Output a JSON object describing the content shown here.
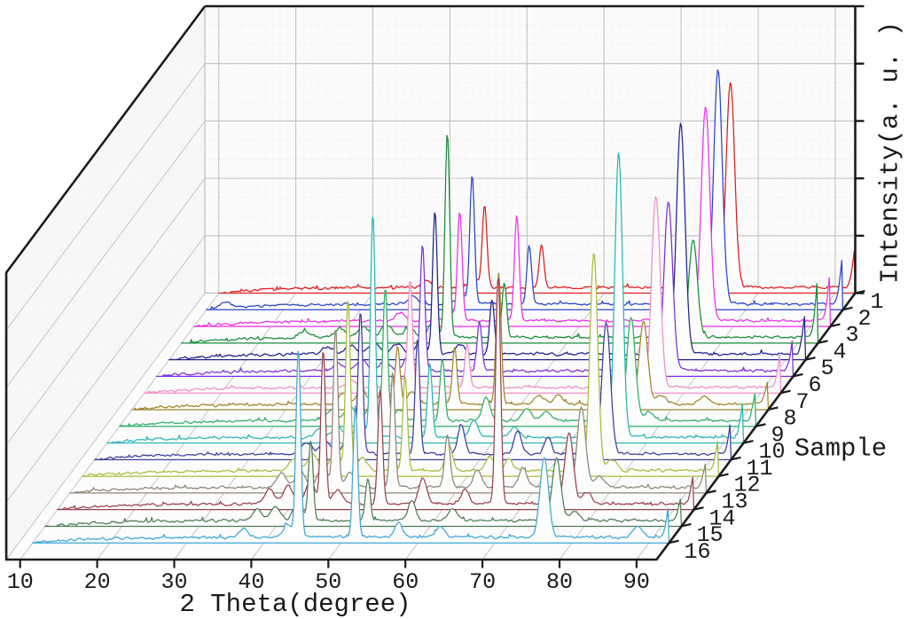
{
  "figure": {
    "description": "3D waterfall plot of X-ray diffraction patterns for 16 samples",
    "background": "#ffffff"
  },
  "chart_data": {
    "type": "line",
    "variant": "3d_waterfall_xrd",
    "title": "",
    "legend": "none",
    "grid": "on",
    "x_axis": {
      "label": "2 Theta(degree)",
      "ticks": [
        10,
        20,
        30,
        40,
        50,
        60,
        70,
        80,
        90
      ],
      "range": [
        8.2,
        92.6
      ],
      "units": "degree"
    },
    "y_axis": {
      "label": "Intensity(a. u. )",
      "tick_labels": [],
      "gridline_intervals": 5,
      "range": "arbitrary units, unlabeled"
    },
    "depth_axis": {
      "label": "Sample",
      "ticks": [
        "1",
        "2",
        "3",
        "4",
        "5",
        "6",
        "7",
        "8",
        "9",
        "10",
        "11",
        "12",
        "13",
        "14",
        "15",
        "16"
      ]
    },
    "peaks_format": [
      "two_theta_deg",
      "height_pct_of_axis",
      "width_deg"
    ],
    "noise_amplitude_pct": 0.7,
    "background_ramp_pct": 2.0,
    "samples": [
      {
        "label": "1",
        "color": "#e31a1c",
        "peaks": [
          [
            44.5,
            29,
            0.3
          ],
          [
            51.9,
            15,
            0.3
          ],
          [
            76.4,
            72,
            0.55
          ],
          [
            92.9,
            19,
            0.5
          ],
          [
            36.8,
            2.5,
            0.6
          ],
          [
            43.1,
            3,
            0.6
          ]
        ]
      },
      {
        "label": "2",
        "color": "#2743cf",
        "peaks": [
          [
            44.5,
            45,
            0.3
          ],
          [
            51.9,
            20,
            0.3
          ],
          [
            76.4,
            82,
            0.55
          ],
          [
            92.9,
            23,
            0.5
          ],
          [
            12.5,
            2,
            0.8
          ],
          [
            36.8,
            2.5,
            0.6
          ],
          [
            43.1,
            3.5,
            0.6
          ]
        ]
      },
      {
        "label": "3",
        "color": "#ee2dea",
        "peaks": [
          [
            44.5,
            38,
            0.3
          ],
          [
            51.9,
            37,
            0.3
          ],
          [
            76.4,
            75,
            0.55
          ],
          [
            92.9,
            22,
            0.5
          ],
          [
            36.8,
            3,
            0.6
          ],
          [
            43.1,
            3.5,
            0.6
          ]
        ]
      },
      {
        "label": "4",
        "color": "#168c37",
        "peaks": [
          [
            44.5,
            72,
            0.3
          ],
          [
            51.9,
            19,
            0.3
          ],
          [
            76.4,
            34,
            0.55
          ],
          [
            92.9,
            27,
            0.5
          ],
          [
            26.0,
            2.5,
            0.7
          ],
          [
            30.6,
            3,
            0.7
          ],
          [
            33.6,
            3.5,
            0.7
          ],
          [
            36.6,
            4.5,
            0.7
          ],
          [
            39.6,
            3.5,
            0.7
          ],
          [
            42.6,
            5,
            0.6
          ]
        ]
      },
      {
        "label": "5",
        "color": "#20208f",
        "peaks": [
          [
            44.5,
            50,
            0.3
          ],
          [
            51.9,
            19,
            0.3
          ],
          [
            76.4,
            81,
            0.55
          ],
          [
            92.9,
            19,
            0.5
          ],
          [
            30.6,
            2.5,
            0.7
          ],
          [
            33.6,
            3,
            0.7
          ],
          [
            36.6,
            4,
            0.7
          ],
          [
            39.6,
            3.5,
            0.7
          ],
          [
            42.6,
            5,
            0.6
          ],
          [
            47.8,
            3,
            0.6
          ]
        ]
      },
      {
        "label": "6",
        "color": "#7b2fe0",
        "peaks": [
          [
            44.5,
            44,
            0.3
          ],
          [
            51.9,
            17,
            0.3
          ],
          [
            76.4,
            59,
            0.55
          ],
          [
            92.9,
            15,
            0.5
          ],
          [
            33.6,
            2.5,
            0.7
          ],
          [
            36.6,
            3.5,
            0.7
          ],
          [
            39.6,
            3,
            0.7
          ],
          [
            42.6,
            4.5,
            0.6
          ]
        ]
      },
      {
        "label": "7",
        "color": "#f08cc8",
        "peaks": [
          [
            44.5,
            37,
            0.3
          ],
          [
            51.9,
            15,
            0.3
          ],
          [
            76.4,
            67,
            0.55
          ],
          [
            92.9,
            17,
            0.5
          ],
          [
            36.8,
            2.5,
            0.6
          ],
          [
            43.1,
            3,
            0.6
          ]
        ]
      },
      {
        "label": "8",
        "color": "#a08428",
        "peaks": [
          [
            44.5,
            20,
            0.3
          ],
          [
            51.9,
            20,
            0.3
          ],
          [
            57.6,
            46,
            0.32
          ],
          [
            76.4,
            29,
            0.55
          ],
          [
            92.9,
            12,
            0.5
          ],
          [
            37.5,
            4,
            0.6
          ],
          [
            39.9,
            5,
            0.6
          ],
          [
            42.8,
            6,
            0.6
          ],
          [
            46.4,
            4,
            0.6
          ],
          [
            62.9,
            3,
            0.6
          ],
          [
            65.4,
            3,
            0.6
          ],
          [
            78.7,
            3,
            0.6
          ],
          [
            84.3,
            2.5,
            0.6
          ]
        ]
      },
      {
        "label": "9",
        "color": "#2fae66",
        "peaks": [
          [
            44.5,
            46,
            0.3
          ],
          [
            51.9,
            22,
            0.3
          ],
          [
            76.4,
            36,
            0.55
          ],
          [
            92.9,
            14,
            0.5
          ],
          [
            37.5,
            4,
            0.6
          ],
          [
            39.9,
            5.5,
            0.6
          ],
          [
            42.8,
            7,
            0.6
          ],
          [
            46.4,
            4,
            0.6
          ],
          [
            57.6,
            8,
            0.5
          ],
          [
            62.9,
            4,
            0.6
          ],
          [
            65.4,
            3,
            0.6
          ],
          [
            78.7,
            3,
            0.6
          ]
        ]
      },
      {
        "label": "10",
        "color": "#26b7b2",
        "peaks": [
          [
            44.5,
            78,
            0.3
          ],
          [
            51.9,
            26,
            0.3
          ],
          [
            76.4,
            99,
            0.5
          ],
          [
            92.9,
            17,
            0.5
          ],
          [
            37.5,
            3,
            0.6
          ],
          [
            39.9,
            4,
            0.6
          ],
          [
            42.8,
            5,
            0.6
          ],
          [
            57.6,
            6,
            0.5
          ],
          [
            62.9,
            3.5,
            0.6
          ]
        ]
      },
      {
        "label": "11",
        "color": "#3d3da0",
        "peaks": [
          [
            44.5,
            50,
            0.3
          ],
          [
            51.9,
            40,
            0.3
          ],
          [
            76.4,
            46,
            0.55
          ],
          [
            92.9,
            15,
            0.5
          ],
          [
            37.5,
            4,
            0.6
          ],
          [
            39.9,
            5,
            0.6
          ],
          [
            42.8,
            6,
            0.6
          ],
          [
            57.6,
            10,
            0.45
          ],
          [
            64.9,
            8,
            0.45
          ],
          [
            68.8,
            6,
            0.45
          ]
        ]
      },
      {
        "label": "12",
        "color": "#a6bc3a",
        "peaks": [
          [
            44.5,
            60,
            0.3
          ],
          [
            51.9,
            33,
            0.3
          ],
          [
            76.4,
            76,
            0.5
          ],
          [
            92.9,
            15,
            0.5
          ],
          [
            37.5,
            4.5,
            0.6
          ],
          [
            39.9,
            6,
            0.6
          ],
          [
            42.8,
            7,
            0.6
          ],
          [
            46.4,
            4.5,
            0.6
          ],
          [
            57.6,
            9,
            0.45
          ],
          [
            62.9,
            5,
            0.5
          ],
          [
            65.4,
            4,
            0.5
          ],
          [
            78.7,
            3.5,
            0.6
          ]
        ]
      },
      {
        "label": "13",
        "color": "#8f8578",
        "peaks": [
          [
            44.5,
            56,
            0.3
          ],
          [
            51.9,
            40,
            0.3
          ],
          [
            59.0,
            18,
            0.35
          ],
          [
            76.4,
            28,
            0.55
          ],
          [
            92.9,
            12,
            0.5
          ],
          [
            37.5,
            5,
            0.6
          ],
          [
            39.9,
            6,
            0.6
          ],
          [
            42.8,
            7,
            0.6
          ],
          [
            46.4,
            5,
            0.6
          ],
          [
            62.9,
            6,
            0.5
          ],
          [
            68.8,
            7,
            0.5
          ],
          [
            78.7,
            4,
            0.6
          ]
        ]
      },
      {
        "label": "14",
        "color": "#99414f",
        "peaks": [
          [
            44.5,
            54,
            0.3
          ],
          [
            51.9,
            40,
            0.3
          ],
          [
            67.2,
            80,
            0.32
          ],
          [
            76.4,
            25,
            0.55
          ],
          [
            92.9,
            14,
            0.5
          ],
          [
            37.5,
            5,
            0.6
          ],
          [
            39.9,
            6.5,
            0.6
          ],
          [
            42.8,
            8,
            0.6
          ],
          [
            46.4,
            5,
            0.6
          ],
          [
            57.4,
            9,
            0.5
          ],
          [
            62.9,
            5,
            0.5
          ],
          [
            78.7,
            4,
            0.6
          ]
        ]
      },
      {
        "label": "15",
        "color": "#4d7d55",
        "peaks": [
          [
            44.5,
            28,
            0.3
          ],
          [
            51.9,
            15,
            0.3
          ],
          [
            76.4,
            22,
            0.55
          ],
          [
            92.9,
            11,
            0.5
          ],
          [
            37.5,
            4,
            0.6
          ],
          [
            39.9,
            5,
            0.6
          ],
          [
            42.8,
            6,
            0.6
          ],
          [
            57.6,
            7,
            0.5
          ],
          [
            62.9,
            4,
            0.6
          ],
          [
            78.7,
            3,
            0.6
          ]
        ]
      },
      {
        "label": "16",
        "color": "#3ea6d2",
        "peaks": [
          [
            44.5,
            66,
            0.3
          ],
          [
            51.9,
            46,
            0.3
          ],
          [
            76.4,
            28,
            0.55
          ],
          [
            92.9,
            15,
            0.5
          ],
          [
            37.4,
            3,
            0.6
          ],
          [
            43.1,
            4,
            0.6
          ],
          [
            57.5,
            5,
            0.5
          ],
          [
            62.9,
            3.5,
            0.6
          ],
          [
            88.5,
            4,
            0.6
          ]
        ]
      }
    ]
  }
}
